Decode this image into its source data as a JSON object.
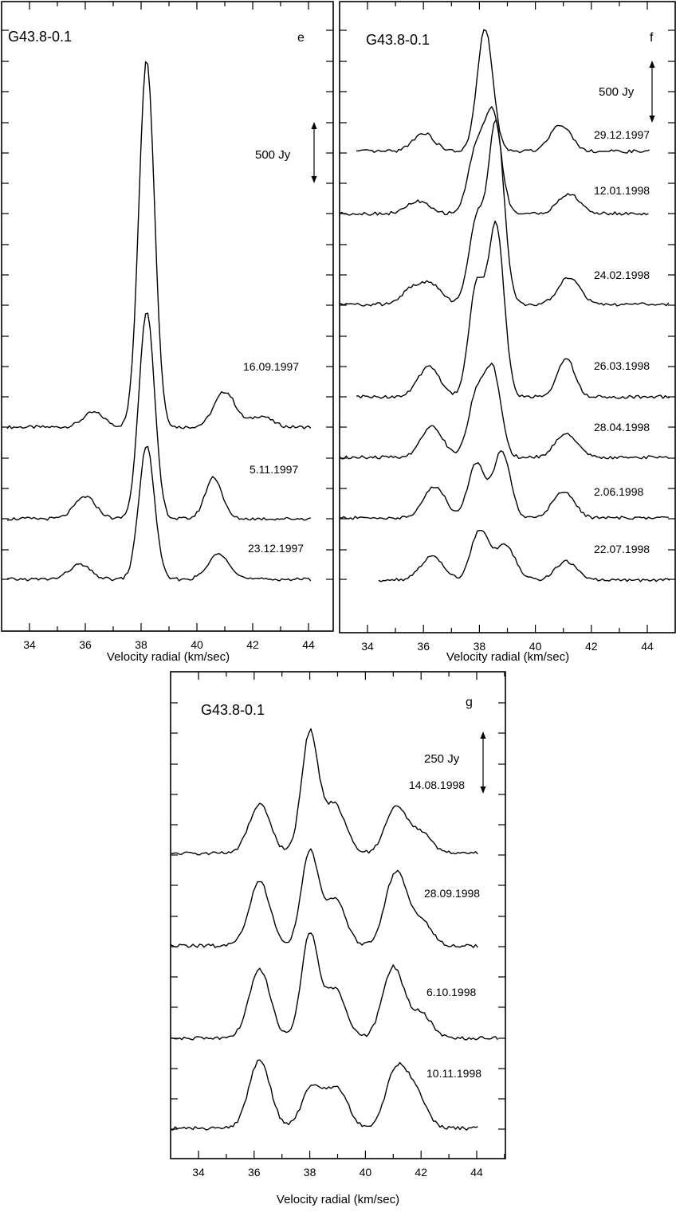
{
  "chart_data": [
    {
      "type": "line",
      "panel": "e",
      "source": "G43.8-0.1",
      "xlabel": "Velocity radial (km/sec)",
      "xlim": [
        33,
        45
      ],
      "xticks": [
        "34",
        "36",
        "38",
        "40",
        "42",
        "44"
      ],
      "scale_bar": "500 Jy",
      "series": [
        {
          "name": "16.09.1997",
          "peaks": [
            [
              36.3,
              120
            ],
            [
              38.2,
              3000
            ],
            [
              41.0,
              290
            ],
            [
              42.3,
              90
            ]
          ]
        },
        {
          "name": "5.11.1997",
          "peaks": [
            [
              36.0,
              180
            ],
            [
              38.2,
              1700
            ],
            [
              40.6,
              340
            ]
          ]
        },
        {
          "name": "23.12.1997",
          "peaks": [
            [
              35.8,
              120
            ],
            [
              38.2,
              1090
            ],
            [
              40.8,
              210
            ]
          ]
        }
      ]
    },
    {
      "type": "line",
      "panel": "f",
      "source": "G43.8-0.1",
      "xlabel": "Velocity radial (km/sec)",
      "xlim": [
        33,
        45
      ],
      "xticks": [
        "34",
        "36",
        "38",
        "40",
        "42",
        "44"
      ],
      "scale_bar": "500 Jy",
      "series": [
        {
          "name": "29.12.1997",
          "peaks": [
            [
              36.0,
              150
            ],
            [
              38.2,
              1000
            ],
            [
              40.9,
              220
            ]
          ]
        },
        {
          "name": "12.01.1998",
          "peaks": [
            [
              35.8,
              100
            ],
            [
              37.9,
              530
            ],
            [
              38.5,
              780
            ],
            [
              41.2,
              160
            ]
          ]
        },
        {
          "name": "24.02.1998",
          "peaks": [
            [
              35.6,
              120
            ],
            [
              36.3,
              150
            ],
            [
              37.9,
              690
            ],
            [
              38.6,
              1470
            ],
            [
              41.2,
              220
            ]
          ]
        },
        {
          "name": "26.03.1998",
          "peaks": [
            [
              36.2,
              250
            ],
            [
              37.9,
              900
            ],
            [
              38.6,
              1380
            ],
            [
              41.1,
              320
            ]
          ]
        },
        {
          "name": "28.04.1998",
          "peaks": [
            [
              36.3,
              260
            ],
            [
              37.9,
              510
            ],
            [
              38.5,
              670
            ],
            [
              41.1,
              200
            ]
          ]
        },
        {
          "name": "2.06.1998",
          "peaks": [
            [
              36.4,
              260
            ],
            [
              37.9,
              450
            ],
            [
              38.8,
              540
            ],
            [
              41.0,
              220
            ]
          ]
        },
        {
          "name": "22.07.1998",
          "peaks": [
            [
              36.3,
              200
            ],
            [
              38.0,
              400
            ],
            [
              38.9,
              280
            ],
            [
              41.1,
              150
            ]
          ]
        }
      ]
    },
    {
      "type": "line",
      "panel": "g",
      "source": "G43.8-0.1",
      "xlabel": "Velocity radial (km/sec)",
      "xlim": [
        33,
        45
      ],
      "xticks": [
        "34",
        "36",
        "38",
        "40",
        "42",
        "44"
      ],
      "scale_bar": "250 Jy",
      "series": [
        {
          "name": "14.08.1998",
          "peaks": [
            [
              36.2,
              200
            ],
            [
              38.0,
              490
            ],
            [
              38.9,
              200
            ],
            [
              41.1,
              190
            ],
            [
              42.0,
              80
            ]
          ]
        },
        {
          "name": "28.09.1998",
          "peaks": [
            [
              36.2,
              260
            ],
            [
              38.0,
              380
            ],
            [
              38.9,
              190
            ],
            [
              41.1,
              300
            ],
            [
              42.0,
              100
            ]
          ]
        },
        {
          "name": "6.10.1998",
          "peaks": [
            [
              36.2,
              280
            ],
            [
              38.0,
              420
            ],
            [
              38.9,
              200
            ],
            [
              41.0,
              290
            ],
            [
              42.0,
              100
            ]
          ]
        },
        {
          "name": "10.11.1998",
          "peaks": [
            [
              36.2,
              280
            ],
            [
              38.1,
              170
            ],
            [
              39.0,
              160
            ],
            [
              41.1,
              230
            ],
            [
              41.8,
              140
            ]
          ]
        }
      ]
    }
  ]
}
